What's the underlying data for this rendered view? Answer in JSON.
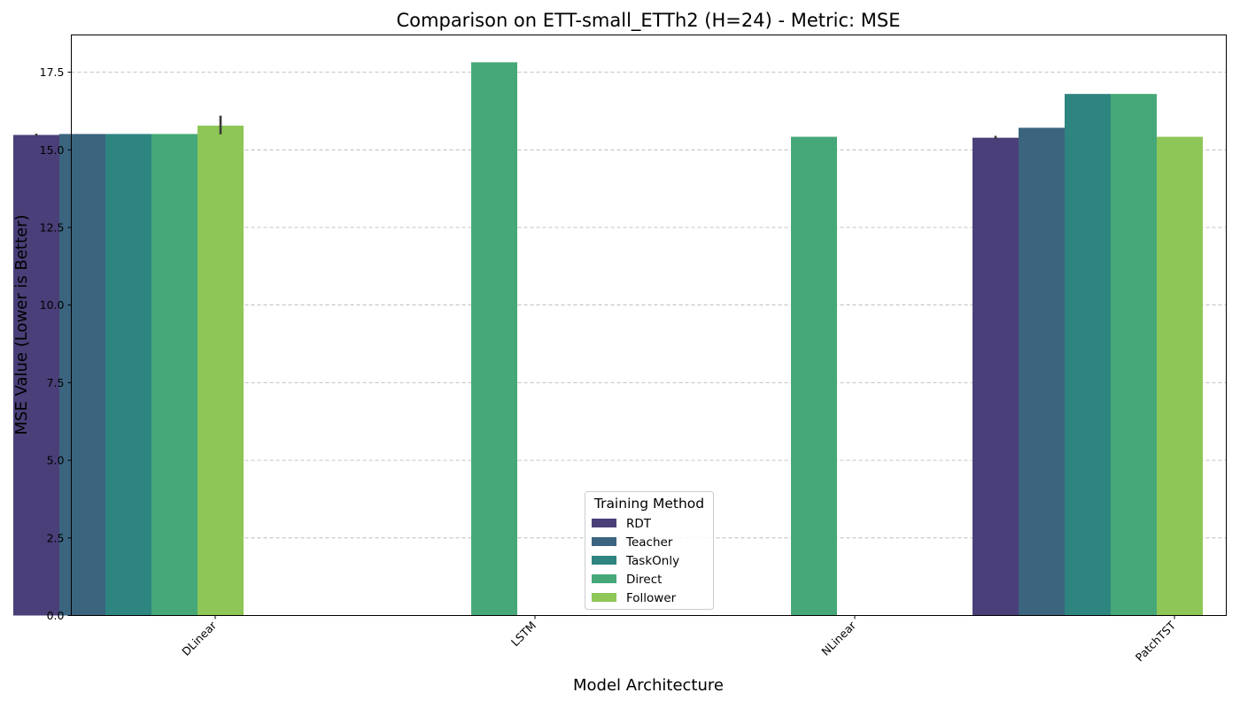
{
  "chart_data": {
    "type": "bar",
    "title": "Comparison on ETT-small_ETTh2 (H=24) - Metric: MSE",
    "xlabel": "Model Architecture",
    "ylabel": "MSE Value (Lower is Better)",
    "categories": [
      "DLinear",
      "LSTM",
      "NLinear",
      "PatchTST"
    ],
    "ylim": [
      0,
      18.7
    ],
    "yticks": [
      0.0,
      2.5,
      5.0,
      7.5,
      10.0,
      12.5,
      15.0,
      17.5
    ],
    "ytick_labels": [
      "0.0",
      "2.5",
      "5.0",
      "7.5",
      "10.0",
      "12.5",
      "15.0",
      "17.5"
    ],
    "grid": "y",
    "legend": {
      "title": "Training Method",
      "placement": "bottom-center"
    },
    "series": [
      {
        "name": "RDT",
        "color": "#4a3f78",
        "values": [
          15.48,
          null,
          null,
          15.39
        ],
        "error": [
          [
            15.45,
            15.52
          ],
          null,
          null,
          [
            15.35,
            15.45
          ]
        ]
      },
      {
        "name": "Teacher",
        "color": "#3b647f",
        "values": [
          15.51,
          null,
          null,
          15.71
        ],
        "error": [
          null,
          null,
          null,
          null
        ]
      },
      {
        "name": "TaskOnly",
        "color": "#2e8580",
        "values": [
          15.51,
          null,
          null,
          16.8
        ],
        "error": [
          null,
          null,
          null,
          null
        ]
      },
      {
        "name": "Direct",
        "color": "#46a878",
        "values": [
          15.51,
          17.82,
          15.42,
          16.8
        ],
        "error": [
          null,
          null,
          null,
          null
        ]
      },
      {
        "name": "Follower",
        "color": "#8ec657",
        "values": [
          15.78,
          null,
          null,
          15.42
        ],
        "error": [
          [
            15.5,
            16.1
          ],
          null,
          null,
          null
        ]
      }
    ]
  }
}
